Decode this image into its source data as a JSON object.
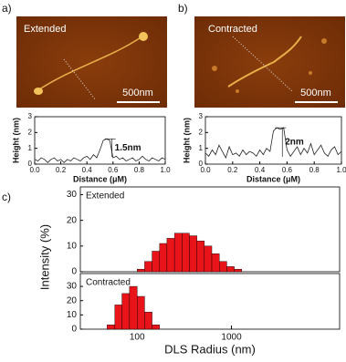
{
  "images": [
    {
      "label": "a)",
      "caption": "Extended",
      "scale_bar": "500nm"
    },
    {
      "label": "b)",
      "caption": "Contracted",
      "scale_bar": "500nm"
    }
  ],
  "panel_c_label": "c)",
  "chart_data": [
    {
      "type": "line",
      "xlabel": "Distance (μM)",
      "ylabel": "Height (nm)",
      "annotation": "1.5nm",
      "color": "#222222",
      "x": [
        0,
        0.025,
        0.05,
        0.075,
        0.1,
        0.125,
        0.15,
        0.175,
        0.2,
        0.225,
        0.25,
        0.275,
        0.3,
        0.325,
        0.35,
        0.375,
        0.4,
        0.425,
        0.45,
        0.475,
        0.5,
        0.525,
        0.55,
        0.575,
        0.6,
        0.625,
        0.65,
        0.675,
        0.7,
        0.725,
        0.75,
        0.775,
        0.8,
        0.825,
        0.85,
        0.875,
        0.9,
        0.925,
        0.95,
        0.975,
        1
      ],
      "values": [
        0.3,
        0.2,
        0.4,
        0.3,
        0.1,
        0.3,
        0.4,
        0.2,
        0.3,
        0.1,
        0.3,
        0.2,
        0.4,
        0.3,
        0.2,
        0.4,
        0.5,
        0.3,
        0.6,
        0.4,
        0.9,
        1.5,
        1.6,
        1.5,
        0.4,
        0.5,
        0.3,
        0.4,
        0.2,
        0.3,
        0.4,
        0.2,
        0.3,
        0.5,
        0.3,
        0.2,
        0.4,
        0.3,
        0.2,
        0.4,
        0.3
      ],
      "xlim": [
        0,
        1
      ],
      "ylim": [
        0,
        3
      ],
      "xticks": [
        {
          "value": 0,
          "label": "0.0"
        },
        {
          "value": 0.2,
          "label": "0.2"
        },
        {
          "value": 0.4,
          "label": "0.4"
        },
        {
          "value": 0.6,
          "label": "0.6"
        },
        {
          "value": 0.8,
          "label": "0.8"
        },
        {
          "value": 1,
          "label": "1.0"
        }
      ],
      "yticks": [
        0,
        1,
        2,
        3
      ]
    },
    {
      "type": "line",
      "xlabel": "Distance (μM)",
      "ylabel": "Height (nm)",
      "annotation": "2nm",
      "color": "#222222",
      "x": [
        0,
        0.025,
        0.05,
        0.075,
        0.1,
        0.125,
        0.15,
        0.175,
        0.2,
        0.225,
        0.25,
        0.275,
        0.3,
        0.325,
        0.35,
        0.375,
        0.4,
        0.425,
        0.45,
        0.475,
        0.5,
        0.525,
        0.55,
        0.575,
        0.6,
        0.625,
        0.65,
        0.675,
        0.7,
        0.725,
        0.75,
        0.775,
        0.8,
        0.825,
        0.85,
        0.875,
        0.9,
        0.925,
        0.95,
        0.975,
        1
      ],
      "values": [
        0.7,
        0.5,
        0.9,
        0.6,
        1.2,
        0.8,
        0.4,
        1.1,
        0.6,
        0.7,
        0.5,
        0.9,
        0.6,
        0.8,
        0.7,
        0.5,
        0.9,
        0.6,
        1.0,
        0.8,
        2.1,
        2.3,
        2.2,
        2.3,
        0.9,
        0.5,
        0.8,
        1.1,
        0.6,
        1.0,
        0.7,
        1.3,
        0.6,
        0.9,
        1.2,
        0.7,
        0.5,
        0.9,
        1.1,
        0.6,
        0.8
      ],
      "xlim": [
        0,
        1
      ],
      "ylim": [
        0,
        3
      ],
      "xticks": [
        {
          "value": 0,
          "label": "0.0"
        },
        {
          "value": 0.2,
          "label": "0.2"
        },
        {
          "value": 0.4,
          "label": "0.4"
        },
        {
          "value": 0.6,
          "label": "0.6"
        },
        {
          "value": 0.8,
          "label": "0.8"
        },
        {
          "value": 1,
          "label": "1.0"
        }
      ],
      "yticks": [
        0,
        1,
        2,
        3
      ]
    },
    {
      "type": "histogram",
      "name": "Extended",
      "color": "#e8141a",
      "log_x": true,
      "bins": [
        100,
        120,
        144,
        173,
        207,
        249,
        299,
        358,
        430,
        516,
        619,
        743,
        892,
        1070,
        1284
      ],
      "values": [
        1,
        4,
        8,
        11,
        13,
        15,
        15,
        14,
        12,
        10,
        7,
        4,
        2,
        1
      ],
      "xlim": [
        25,
        14000
      ],
      "ylim": [
        0,
        33
      ],
      "yticks": [
        0,
        10,
        20,
        30
      ]
    },
    {
      "type": "histogram",
      "name": "Contracted",
      "color": "#e8141a",
      "log_x": true,
      "xlabel": "DLS Radius (nm)",
      "ylabel": "Intensity (%)",
      "bins": [
        48,
        58,
        69,
        83,
        100,
        120,
        144,
        173
      ],
      "values": [
        3,
        17,
        25,
        30,
        23,
        12,
        3
      ],
      "xlim": [
        25,
        14000
      ],
      "ylim": [
        0,
        39
      ],
      "yticks": [
        0,
        10,
        20,
        30
      ],
      "xticks": [
        100,
        1000
      ]
    }
  ]
}
